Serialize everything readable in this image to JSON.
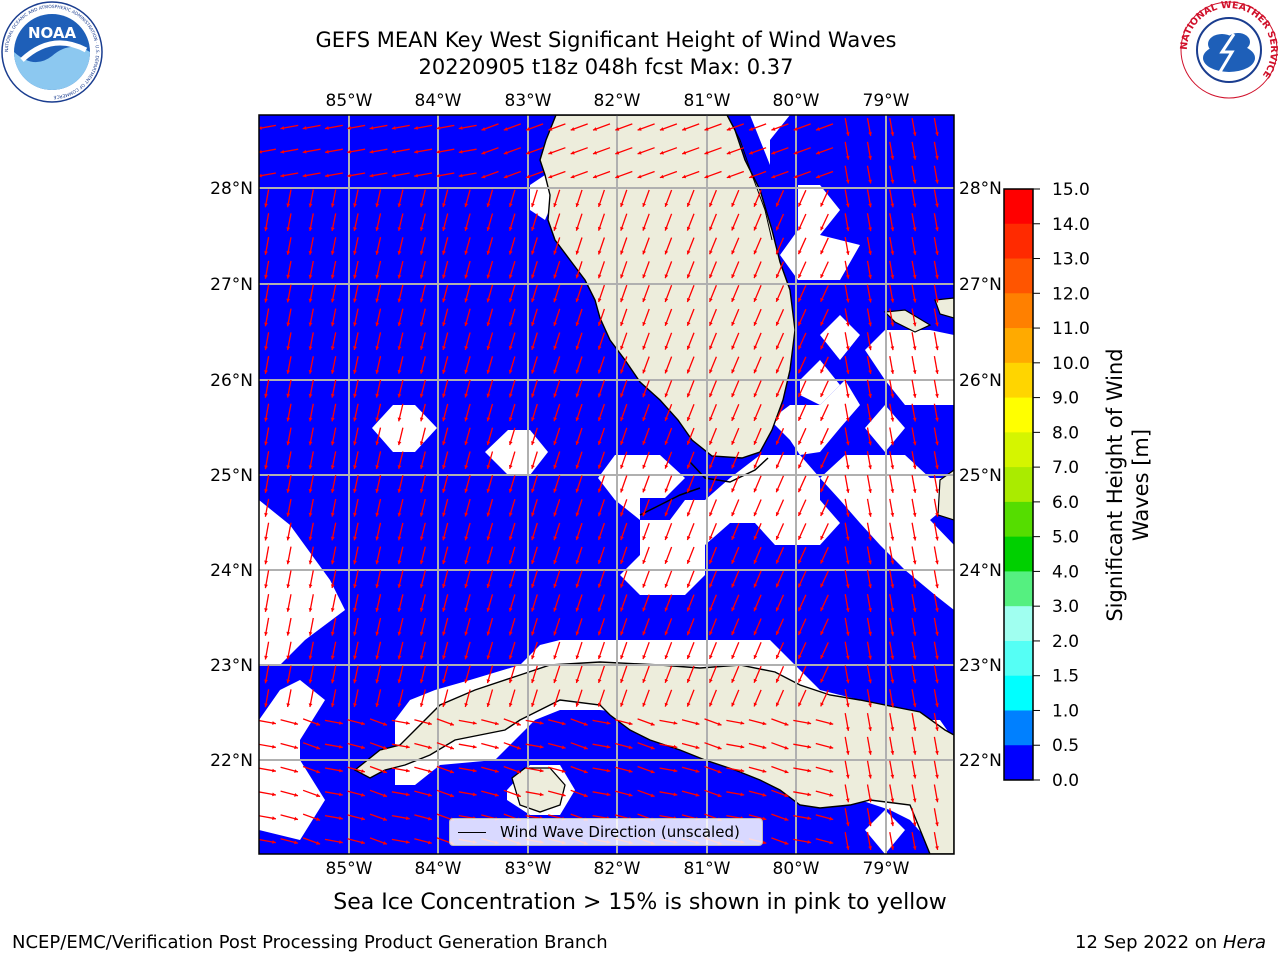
{
  "title": {
    "line1": "GEFS MEAN Key West Significant Height of Wind Waves",
    "line2": "20220905 t18z 048h fcst   Max: 0.37"
  },
  "map": {
    "lon_ticks": [
      "85°W",
      "84°W",
      "83°W",
      "82°W",
      "81°W",
      "80°W",
      "79°W"
    ],
    "lat_ticks": [
      "28°N",
      "27°N",
      "26°N",
      "25°N",
      "24°N",
      "23°N",
      "22°N"
    ],
    "ocean_color": "#0000FF",
    "land_color": "#EDEDDC",
    "no_data_color": "#FFFFFF",
    "arrow_color": "#FF0000",
    "legend_label": "Wind Wave Direction (unscaled)"
  },
  "colorbar": {
    "label": "Significant Height of Wind Waves [m]",
    "ticks": [
      "15.0",
      "14.0",
      "13.0",
      "12.0",
      "11.0",
      "10.0",
      "9.0",
      "8.0",
      "7.0",
      "6.0",
      "5.0",
      "4.0",
      "3.0",
      "2.0",
      "1.5",
      "1.0",
      "0.5",
      "0.0"
    ],
    "colors": [
      "#FF0000",
      "#FF2A00",
      "#FF5500",
      "#FF8000",
      "#FFAA00",
      "#FFD500",
      "#FFFF00",
      "#D5F500",
      "#AAEB00",
      "#55DD00",
      "#00D000",
      "#55F080",
      "#A0FFF0",
      "#55FFF5",
      "#00FFFF",
      "#0080FF",
      "#0000FF"
    ]
  },
  "note": "Sea Ice Concentration > 15% is shown in pink to yellow",
  "footer": {
    "left": "NCEP/EMC/Verification Post Processing Product Generation Branch",
    "date": "12 Sep 2022 on ",
    "host": "Hera"
  },
  "logos": {
    "noaa_text": "NOAA",
    "noaa_ring_text": "NATIONAL OCEANIC AND ATMOSPHERIC ADMINISTRATION · U.S. DEPARTMENT OF COMMERCE",
    "nws_ring_text": "NATIONAL WEATHER SERVICE"
  }
}
